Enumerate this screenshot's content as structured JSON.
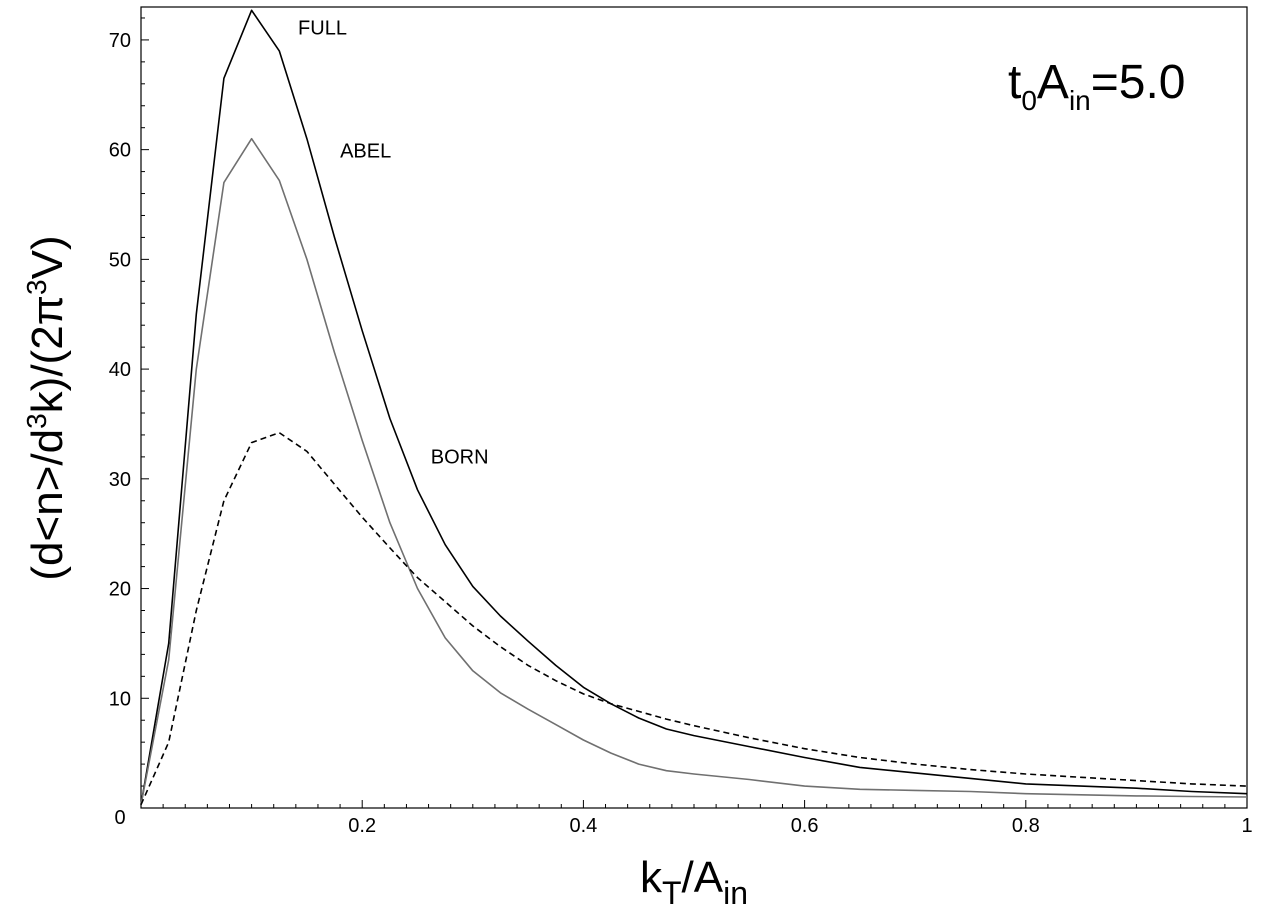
{
  "chart_data": {
    "type": "line",
    "title": "",
    "xlabel": {
      "base": "k",
      "sub": "T",
      "mid": "/A",
      "sub2": "in"
    },
    "ylabel": {
      "pre": "(d<n>/d",
      "sup": "3",
      "post": "k)/(2π",
      "sup2": "3",
      "end": "V)"
    },
    "annotation": {
      "t": "t",
      "t_sub": "0",
      "a": "A",
      "a_sub": "in",
      "value": "=5.0"
    },
    "xlim": [
      0,
      1
    ],
    "ylim": [
      0,
      73
    ],
    "x_ticks": [
      0.2,
      0.4,
      0.6,
      0.8,
      1
    ],
    "x_tick_labels": [
      "0.2",
      "0.4",
      "0.6",
      "0.8",
      "1"
    ],
    "y_ticks": [
      10,
      20,
      30,
      40,
      50,
      60,
      70
    ],
    "y_tick_labels": [
      "10",
      "20",
      "30",
      "40",
      "50",
      "60",
      "70"
    ],
    "origin_label": "0",
    "grid": false,
    "series": [
      {
        "name": "FULL",
        "color": "#000000",
        "dash": "solid",
        "x": [
          0,
          0.025,
          0.05,
          0.075,
          0.1,
          0.125,
          0.15,
          0.175,
          0.2,
          0.225,
          0.25,
          0.275,
          0.3,
          0.325,
          0.35,
          0.375,
          0.4,
          0.425,
          0.45,
          0.475,
          0.5,
          0.55,
          0.6,
          0.65,
          0.7,
          0.75,
          0.8,
          0.85,
          0.9,
          0.95,
          1.0
        ],
        "values": [
          0.3,
          15,
          45,
          66.5,
          72.7,
          69,
          61,
          52,
          43.5,
          35.5,
          29,
          24,
          20.2,
          17.5,
          15.2,
          13,
          11,
          9.5,
          8.2,
          7.2,
          6.6,
          5.6,
          4.6,
          3.7,
          3.2,
          2.7,
          2.2,
          2.0,
          1.8,
          1.5,
          1.3
        ]
      },
      {
        "name": "ABEL",
        "color": "#707070",
        "dash": "solid",
        "x": [
          0,
          0.025,
          0.05,
          0.075,
          0.1,
          0.125,
          0.15,
          0.175,
          0.2,
          0.225,
          0.25,
          0.275,
          0.3,
          0.325,
          0.35,
          0.375,
          0.4,
          0.425,
          0.45,
          0.475,
          0.5,
          0.55,
          0.6,
          0.65,
          0.7,
          0.75,
          0.8,
          0.85,
          0.9,
          0.95,
          1.0
        ],
        "values": [
          0.3,
          13.5,
          40,
          57,
          61,
          57.2,
          50,
          41.5,
          33.5,
          26,
          20,
          15.5,
          12.5,
          10.5,
          9,
          7.6,
          6.2,
          5,
          4,
          3.4,
          3.1,
          2.6,
          2.0,
          1.7,
          1.6,
          1.5,
          1.3,
          1.2,
          1.1,
          1.05,
          1.0
        ]
      },
      {
        "name": "BORN",
        "color": "#000000",
        "dash": "dashed",
        "x": [
          0,
          0.025,
          0.05,
          0.075,
          0.1,
          0.125,
          0.15,
          0.175,
          0.2,
          0.225,
          0.25,
          0.275,
          0.3,
          0.325,
          0.35,
          0.375,
          0.4,
          0.425,
          0.45,
          0.475,
          0.5,
          0.55,
          0.6,
          0.65,
          0.7,
          0.75,
          0.8,
          0.85,
          0.9,
          0.95,
          1.0
        ],
        "values": [
          0.3,
          6,
          18,
          28,
          33.3,
          34.2,
          32.5,
          29.5,
          26.5,
          23.7,
          21,
          18.8,
          16.6,
          14.7,
          13,
          11.6,
          10.4,
          9.5,
          8.8,
          8.1,
          7.5,
          6.4,
          5.4,
          4.6,
          4.0,
          3.5,
          3.1,
          2.8,
          2.5,
          2.2,
          2.0
        ]
      }
    ],
    "series_labels": [
      {
        "text": "FULL",
        "x": 0.142,
        "y": 70.5
      },
      {
        "text": "ABEL",
        "x": 0.18,
        "y": 59.3
      },
      {
        "text": "BORN",
        "x": 0.262,
        "y": 31.4
      }
    ]
  }
}
